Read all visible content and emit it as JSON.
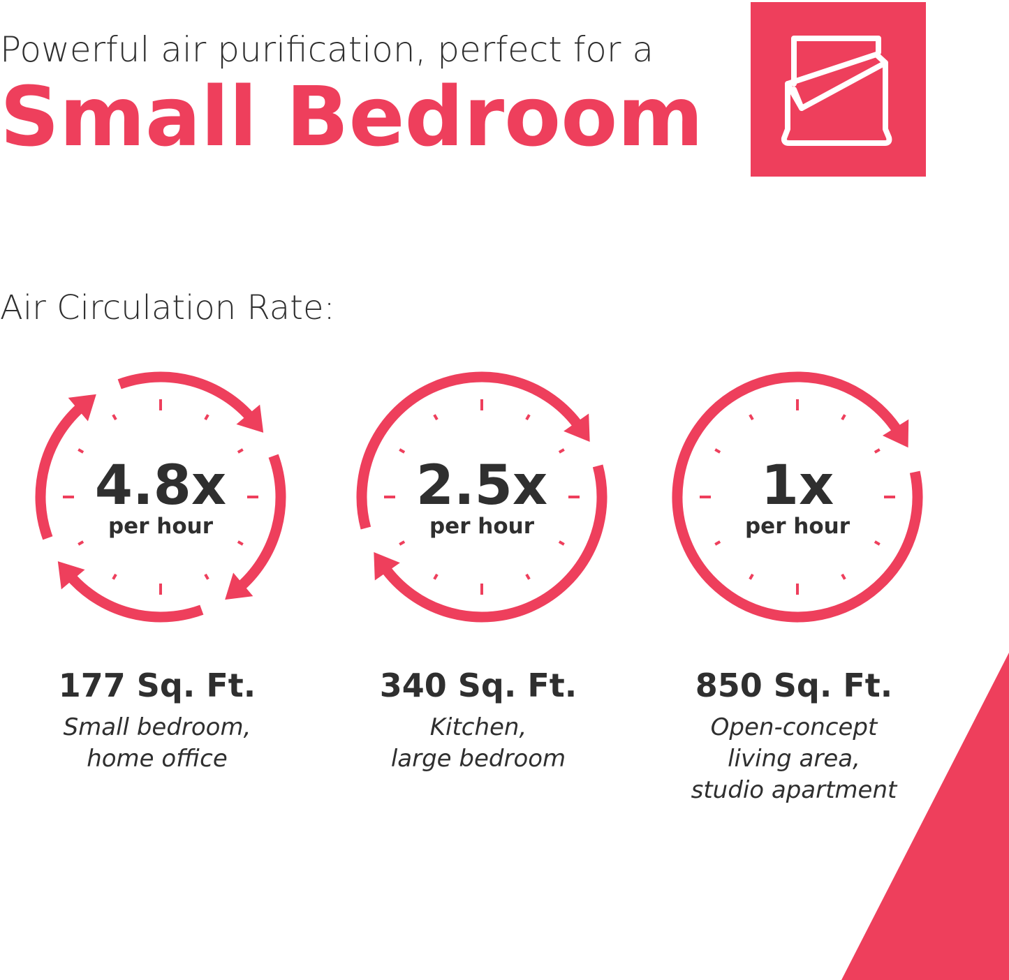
{
  "header": {
    "subtitle": "Powerful air purification, perfect for a",
    "title": "Small Bedroom"
  },
  "section_label": "Air Circulation Rate:",
  "items": [
    {
      "rate": "4.8x",
      "unit": "per hour",
      "area": "177 Sq. Ft.",
      "description": [
        "Small bedroom,",
        "home office"
      ]
    },
    {
      "rate": "2.5x",
      "unit": "per hour",
      "area": "340 Sq. Ft.",
      "description": [
        "Kitchen,",
        "large bedroom"
      ]
    },
    {
      "rate": "1x",
      "unit": "per hour",
      "area": "850 Sq. Ft.",
      "description": [
        "Open-concept",
        "living area,",
        "studio apartment"
      ]
    }
  ]
}
